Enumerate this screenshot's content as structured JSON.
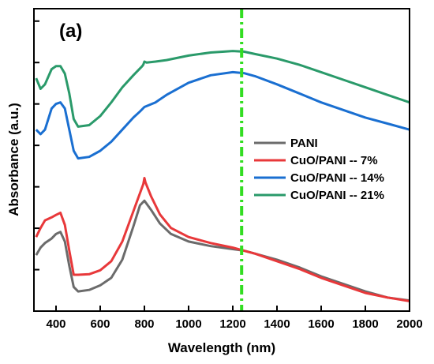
{
  "chart_data": {
    "type": "line",
    "panel_label": "(a)",
    "xlabel": "Wavelength (nm)",
    "ylabel": "Absorbance (a.u.)",
    "xlim": [
      300,
      2000
    ],
    "x_ticks": [
      400,
      600,
      800,
      1000,
      1200,
      1400,
      1600,
      1800,
      2000
    ],
    "y_ticks_labeled": false,
    "ylim": [
      0,
      1
    ],
    "legend_position": "center-right",
    "marker_line": {
      "x": 1240,
      "color": "#33dd22",
      "style": "dash-dot"
    },
    "series": [
      {
        "name": "PANI",
        "color": "#6b6b6b",
        "points": [
          [
            310,
            0.185
          ],
          [
            330,
            0.21
          ],
          [
            350,
            0.225
          ],
          [
            380,
            0.24
          ],
          [
            400,
            0.255
          ],
          [
            420,
            0.262
          ],
          [
            440,
            0.23
          ],
          [
            460,
            0.15
          ],
          [
            480,
            0.08
          ],
          [
            500,
            0.065
          ],
          [
            550,
            0.07
          ],
          [
            600,
            0.085
          ],
          [
            650,
            0.11
          ],
          [
            700,
            0.17
          ],
          [
            750,
            0.28
          ],
          [
            780,
            0.35
          ],
          [
            800,
            0.365
          ],
          [
            830,
            0.335
          ],
          [
            870,
            0.29
          ],
          [
            920,
            0.255
          ],
          [
            1000,
            0.23
          ],
          [
            1100,
            0.215
          ],
          [
            1200,
            0.205
          ],
          [
            1250,
            0.2
          ],
          [
            1300,
            0.19
          ],
          [
            1400,
            0.17
          ],
          [
            1500,
            0.145
          ],
          [
            1600,
            0.115
          ],
          [
            1700,
            0.09
          ],
          [
            1800,
            0.065
          ],
          [
            1900,
            0.045
          ],
          [
            2000,
            0.035
          ]
        ]
      },
      {
        "name": "CuO/PANI -- 7%",
        "color": "#e8383a",
        "points": [
          [
            310,
            0.245
          ],
          [
            330,
            0.275
          ],
          [
            350,
            0.3
          ],
          [
            380,
            0.31
          ],
          [
            400,
            0.318
          ],
          [
            420,
            0.325
          ],
          [
            440,
            0.285
          ],
          [
            460,
            0.2
          ],
          [
            480,
            0.12
          ],
          [
            500,
            0.12
          ],
          [
            550,
            0.122
          ],
          [
            600,
            0.135
          ],
          [
            650,
            0.165
          ],
          [
            700,
            0.23
          ],
          [
            750,
            0.33
          ],
          [
            780,
            0.39
          ],
          [
            795,
            0.42
          ],
          [
            800,
            0.44
          ],
          [
            805,
            0.425
          ],
          [
            830,
            0.38
          ],
          [
            870,
            0.32
          ],
          [
            920,
            0.275
          ],
          [
            1000,
            0.245
          ],
          [
            1100,
            0.225
          ],
          [
            1200,
            0.21
          ],
          [
            1250,
            0.2
          ],
          [
            1300,
            0.19
          ],
          [
            1400,
            0.165
          ],
          [
            1500,
            0.14
          ],
          [
            1600,
            0.11
          ],
          [
            1700,
            0.085
          ],
          [
            1800,
            0.06
          ],
          [
            1900,
            0.045
          ],
          [
            2000,
            0.033
          ]
        ]
      },
      {
        "name": "CuO/PANI -- 14%",
        "color": "#1a6fd1",
        "points": [
          [
            310,
            0.6
          ],
          [
            330,
            0.585
          ],
          [
            350,
            0.6
          ],
          [
            380,
            0.67
          ],
          [
            400,
            0.685
          ],
          [
            420,
            0.69
          ],
          [
            440,
            0.67
          ],
          [
            460,
            0.6
          ],
          [
            480,
            0.53
          ],
          [
            500,
            0.505
          ],
          [
            550,
            0.51
          ],
          [
            600,
            0.53
          ],
          [
            650,
            0.56
          ],
          [
            700,
            0.6
          ],
          [
            750,
            0.64
          ],
          [
            780,
            0.66
          ],
          [
            800,
            0.675
          ],
          [
            850,
            0.69
          ],
          [
            900,
            0.715
          ],
          [
            1000,
            0.755
          ],
          [
            1100,
            0.78
          ],
          [
            1200,
            0.79
          ],
          [
            1250,
            0.787
          ],
          [
            1300,
            0.777
          ],
          [
            1400,
            0.75
          ],
          [
            1500,
            0.72
          ],
          [
            1600,
            0.69
          ],
          [
            1700,
            0.665
          ],
          [
            1800,
            0.64
          ],
          [
            1900,
            0.62
          ],
          [
            2000,
            0.6
          ]
        ]
      },
      {
        "name": "CuO/PANI -- 21%",
        "color": "#2a9a6a",
        "points": [
          [
            310,
            0.77
          ],
          [
            330,
            0.735
          ],
          [
            350,
            0.75
          ],
          [
            380,
            0.8
          ],
          [
            400,
            0.81
          ],
          [
            420,
            0.81
          ],
          [
            440,
            0.785
          ],
          [
            460,
            0.72
          ],
          [
            480,
            0.635
          ],
          [
            500,
            0.61
          ],
          [
            550,
            0.615
          ],
          [
            600,
            0.645
          ],
          [
            650,
            0.69
          ],
          [
            700,
            0.74
          ],
          [
            750,
            0.78
          ],
          [
            790,
            0.81
          ],
          [
            795,
            0.815
          ],
          [
            800,
            0.825
          ],
          [
            810,
            0.822
          ],
          [
            850,
            0.825
          ],
          [
            900,
            0.83
          ],
          [
            1000,
            0.845
          ],
          [
            1100,
            0.855
          ],
          [
            1200,
            0.86
          ],
          [
            1250,
            0.858
          ],
          [
            1300,
            0.85
          ],
          [
            1400,
            0.835
          ],
          [
            1500,
            0.815
          ],
          [
            1600,
            0.79
          ],
          [
            1700,
            0.765
          ],
          [
            1800,
            0.74
          ],
          [
            1900,
            0.715
          ],
          [
            2000,
            0.69
          ]
        ]
      }
    ]
  }
}
